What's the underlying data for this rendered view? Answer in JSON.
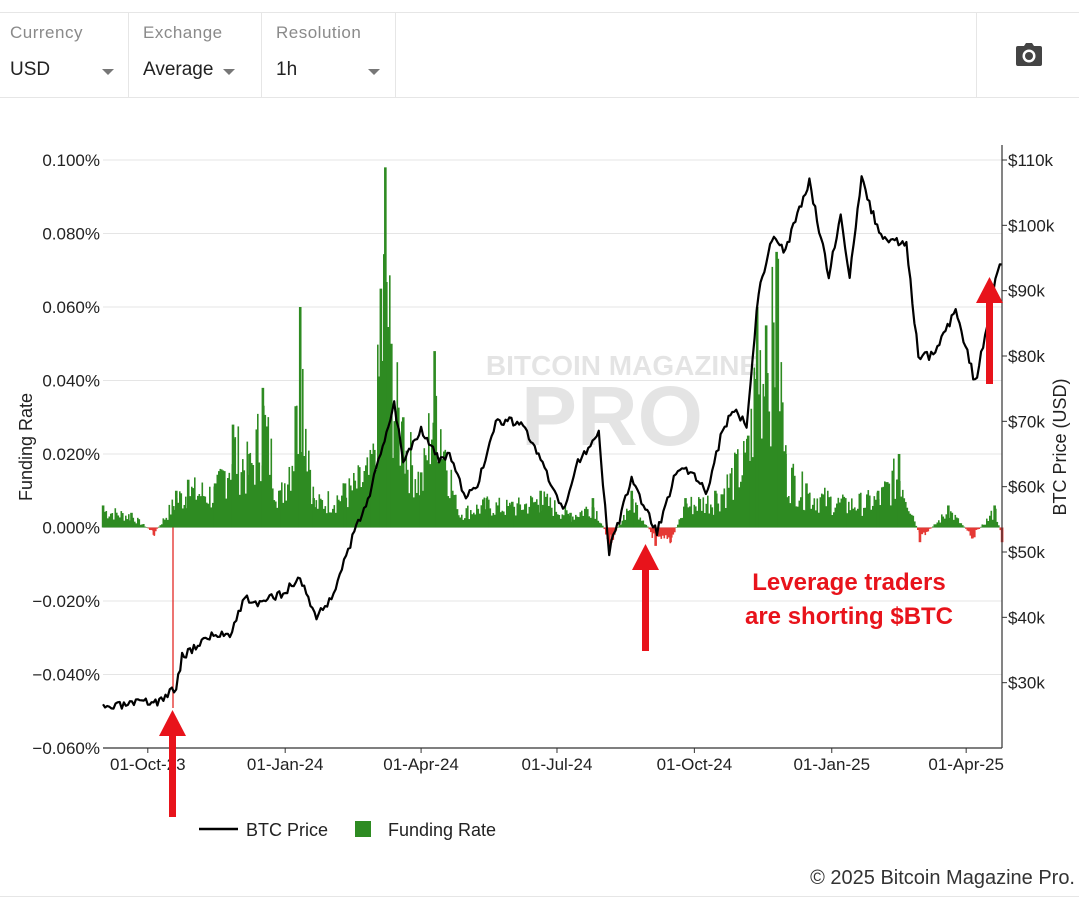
{
  "controls": [
    {
      "label": "Currency",
      "value": "USD"
    },
    {
      "label": "Exchange",
      "value": "Average"
    },
    {
      "label": "Resolution",
      "value": "1h"
    }
  ],
  "camera_icon": "camera-icon",
  "watermark": {
    "line1": "BITCOIN MAGAZINE",
    "line2": "PRO"
  },
  "annotation": {
    "line1": "Leverage traders",
    "line2": "are shorting $BTC",
    "color": "#e8131b"
  },
  "footer": "© 2025 Bitcoin Magazine Pro.",
  "colors": {
    "btc": "#000000",
    "funding_pos": "#2e8b22",
    "funding_neg": "#e53935",
    "arrow": "#e8131b"
  },
  "chart_data": {
    "type": "line+bar",
    "xlabel": "",
    "y_left_label": "Funding Rate",
    "y_right_label": "BTC Price (USD)",
    "x_ticks": [
      "01-Oct-23",
      "01-Jan-24",
      "01-Apr-24",
      "01-Jul-24",
      "01-Oct-24",
      "01-Jan-25",
      "01-Apr-25"
    ],
    "x_range": [
      "2023-09-01",
      "2025-04-25"
    ],
    "y_left_ticks": [
      "0.100%",
      "0.080%",
      "0.060%",
      "0.040%",
      "0.020%",
      "0.000%",
      "−0.020%",
      "−0.040%",
      "−0.060%"
    ],
    "y_left_range": [
      -0.06,
      0.1
    ],
    "y_right_ticks": [
      "$110k",
      "$100k",
      "$90k",
      "$80k",
      "$70k",
      "$60k",
      "$50k",
      "$40k",
      "$30k"
    ],
    "y_right_range": [
      20000,
      110000
    ],
    "grid": true,
    "legend_position": "bottom",
    "series": [
      {
        "name": "BTC Price",
        "kind": "line",
        "axis": "right",
        "points": [
          [
            "2023-09-01",
            26000
          ],
          [
            "2023-09-15",
            26500
          ],
          [
            "2023-10-01",
            27000
          ],
          [
            "2023-10-10",
            27200
          ],
          [
            "2023-10-20",
            29500
          ],
          [
            "2023-10-24",
            34000
          ],
          [
            "2023-11-10",
            37000
          ],
          [
            "2023-11-25",
            37600
          ],
          [
            "2023-12-05",
            43000
          ],
          [
            "2023-12-15",
            42000
          ],
          [
            "2024-01-01",
            44000
          ],
          [
            "2024-01-11",
            46000
          ],
          [
            "2024-01-22",
            40000
          ],
          [
            "2024-02-01",
            43000
          ],
          [
            "2024-02-15",
            52000
          ],
          [
            "2024-02-28",
            60000
          ],
          [
            "2024-03-05",
            65000
          ],
          [
            "2024-03-14",
            73000
          ],
          [
            "2024-03-20",
            64000
          ],
          [
            "2024-04-01",
            69000
          ],
          [
            "2024-04-13",
            64000
          ],
          [
            "2024-04-20",
            65000
          ],
          [
            "2024-05-01",
            58000
          ],
          [
            "2024-05-10",
            61000
          ],
          [
            "2024-05-21",
            70000
          ],
          [
            "2024-06-07",
            70000
          ],
          [
            "2024-06-20",
            64000
          ],
          [
            "2024-07-05",
            56000
          ],
          [
            "2024-07-15",
            64000
          ],
          [
            "2024-07-29",
            68000
          ],
          [
            "2024-08-05",
            50000
          ],
          [
            "2024-08-20",
            61000
          ],
          [
            "2024-09-06",
            53000
          ],
          [
            "2024-09-20",
            63000
          ],
          [
            "2024-10-01",
            62000
          ],
          [
            "2024-10-10",
            59000
          ],
          [
            "2024-10-20",
            69000
          ],
          [
            "2024-10-29",
            72000
          ],
          [
            "2024-11-05",
            69000
          ],
          [
            "2024-11-13",
            90000
          ],
          [
            "2024-11-22",
            98000
          ],
          [
            "2024-12-01",
            96000
          ],
          [
            "2024-12-17",
            107000
          ],
          [
            "2024-12-30",
            92000
          ],
          [
            "2025-01-07",
            102000
          ],
          [
            "2025-01-13",
            92000
          ],
          [
            "2025-01-21",
            107000
          ],
          [
            "2025-02-03",
            98000
          ],
          [
            "2025-02-20",
            97000
          ],
          [
            "2025-02-28",
            80000
          ],
          [
            "2025-03-10",
            80000
          ],
          [
            "2025-03-25",
            87000
          ],
          [
            "2025-04-07",
            76000
          ],
          [
            "2025-04-15",
            84000
          ],
          [
            "2025-04-22",
            93000
          ],
          [
            "2025-04-25",
            94000
          ]
        ]
      },
      {
        "name": "Funding Rate",
        "kind": "bar",
        "axis": "left",
        "points": [
          [
            "2023-09-01",
            0.006
          ],
          [
            "2023-09-20",
            0.004
          ],
          [
            "2023-10-05",
            -0.002
          ],
          [
            "2023-10-20",
            0.01
          ],
          [
            "2023-10-28",
            0.013
          ],
          [
            "2023-11-15",
            0.012
          ],
          [
            "2023-11-27",
            0.028
          ],
          [
            "2023-12-08",
            0.02
          ],
          [
            "2023-12-17",
            0.038
          ],
          [
            "2023-12-28",
            0.01
          ],
          [
            "2024-01-08",
            0.033
          ],
          [
            "2024-01-11",
            0.06
          ],
          [
            "2024-01-20",
            0.008
          ],
          [
            "2024-02-10",
            0.012
          ],
          [
            "2024-02-28",
            0.02
          ],
          [
            "2024-03-05",
            0.065
          ],
          [
            "2024-03-08",
            0.098
          ],
          [
            "2024-03-12",
            0.05
          ],
          [
            "2024-03-20",
            0.03
          ],
          [
            "2024-04-01",
            0.015
          ],
          [
            "2024-04-10",
            0.048
          ],
          [
            "2024-04-25",
            0.005
          ],
          [
            "2024-05-15",
            0.008
          ],
          [
            "2024-06-01",
            0.007
          ],
          [
            "2024-06-20",
            0.01
          ],
          [
            "2024-07-10",
            0.004
          ],
          [
            "2024-07-25",
            0.008
          ],
          [
            "2024-08-05",
            -0.005
          ],
          [
            "2024-08-20",
            0.01
          ],
          [
            "2024-09-05",
            -0.005
          ],
          [
            "2024-09-15",
            -0.004
          ],
          [
            "2024-09-25",
            0.008
          ],
          [
            "2024-10-15",
            0.01
          ],
          [
            "2024-10-29",
            0.02
          ],
          [
            "2024-11-06",
            0.025
          ],
          [
            "2024-11-12",
            0.06
          ],
          [
            "2024-11-18",
            0.055
          ],
          [
            "2024-11-25",
            0.075
          ],
          [
            "2024-12-01",
            0.02
          ],
          [
            "2024-12-15",
            0.012
          ],
          [
            "2025-01-10",
            0.008
          ],
          [
            "2025-02-01",
            0.01
          ],
          [
            "2025-02-15",
            0.02
          ],
          [
            "2025-03-01",
            -0.004
          ],
          [
            "2025-03-20",
            0.006
          ],
          [
            "2025-04-05",
            -0.003
          ],
          [
            "2025-04-20",
            0.006
          ],
          [
            "2025-04-25",
            -0.004
          ]
        ]
      }
    ]
  }
}
